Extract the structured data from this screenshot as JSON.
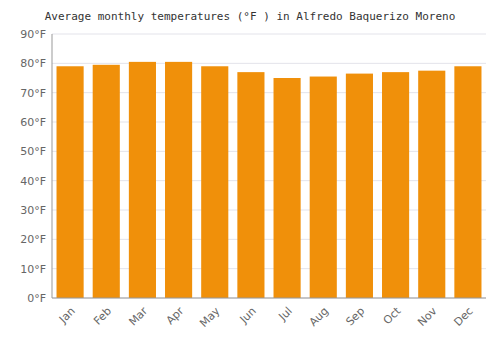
{
  "chart_data": {
    "type": "bar",
    "title": "Average monthly temperatures (°F ) in Alfredo Baquerizo Moreno",
    "categories": [
      "Jan",
      "Feb",
      "Mar",
      "Apr",
      "May",
      "Jun",
      "Jul",
      "Aug",
      "Sep",
      "Oct",
      "Nov",
      "Dec"
    ],
    "values": [
      79,
      79.5,
      80.5,
      80.5,
      79,
      77,
      75,
      75.5,
      76.5,
      77,
      77.5,
      79
    ],
    "color": "#F0900A",
    "ylim": [
      0,
      90
    ],
    "yticks": [
      {
        "value": 0,
        "label": "0°F"
      },
      {
        "value": 10,
        "label": "10°F"
      },
      {
        "value": 20,
        "label": "20°F"
      },
      {
        "value": 30,
        "label": "30°F"
      },
      {
        "value": 40,
        "label": "40°F"
      },
      {
        "value": 50,
        "label": "50°F"
      },
      {
        "value": 60,
        "label": "60°F"
      },
      {
        "value": 70,
        "label": "70°F"
      },
      {
        "value": 80,
        "label": "80°F"
      },
      {
        "value": 90,
        "label": "90°F"
      }
    ],
    "grid": true
  }
}
